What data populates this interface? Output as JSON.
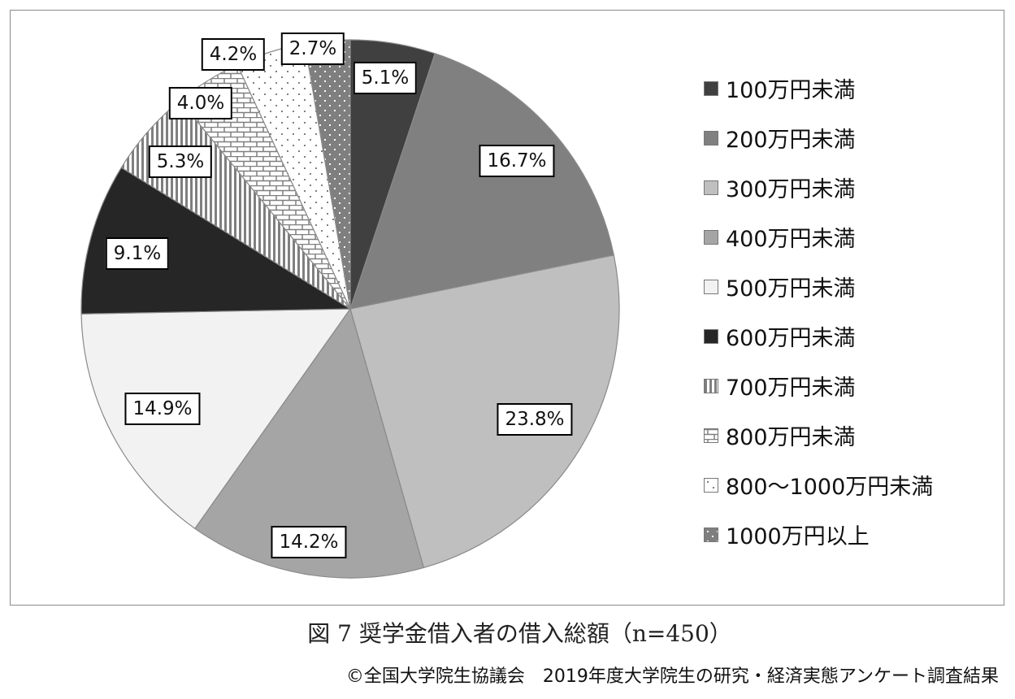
{
  "chart_data": {
    "type": "pie",
    "title": "図 7 奨学金借入者の借入総額（n=450）",
    "source": "©全国大学院生協議会　2019年度大学院生の研究・経済実態アンケート調査結果",
    "legend_position": "right",
    "start": "top, clockwise",
    "slices": [
      {
        "name": "100万円未満",
        "value": 5.1,
        "label": "5.1%",
        "color": "#404040",
        "pattern": "solid"
      },
      {
        "name": "200万円未満",
        "value": 16.7,
        "label": "16.7%",
        "color": "#808080",
        "pattern": "solid"
      },
      {
        "name": "300万円未満",
        "value": 23.8,
        "label": "23.8%",
        "color": "#bfbfbf",
        "pattern": "solid"
      },
      {
        "name": "400万円未満",
        "value": 14.2,
        "label": "14.2%",
        "color": "#a5a5a5",
        "pattern": "solid"
      },
      {
        "name": "500万円未満",
        "value": 14.9,
        "label": "14.9%",
        "color": "#f2f2f2",
        "pattern": "solid"
      },
      {
        "name": "600万円未満",
        "value": 9.1,
        "label": "9.1%",
        "color": "#262626",
        "pattern": "solid"
      },
      {
        "name": "700万円未満",
        "value": 5.3,
        "label": "5.3%",
        "color": "#7f7f7f",
        "pattern": "vertical-stripes"
      },
      {
        "name": "800万円未満",
        "value": 4.0,
        "label": "4.0%",
        "color": "#7f7f7f",
        "pattern": "brick"
      },
      {
        "name": "800～1000万円未満",
        "value": 4.2,
        "label": "4.2%",
        "color": "#7f7f7f",
        "pattern": "sparse-dots"
      },
      {
        "name": "1000万円以上",
        "value": 2.7,
        "label": "2.7%",
        "color": "#7f7f7f",
        "pattern": "dots-on-gray"
      }
    ]
  }
}
